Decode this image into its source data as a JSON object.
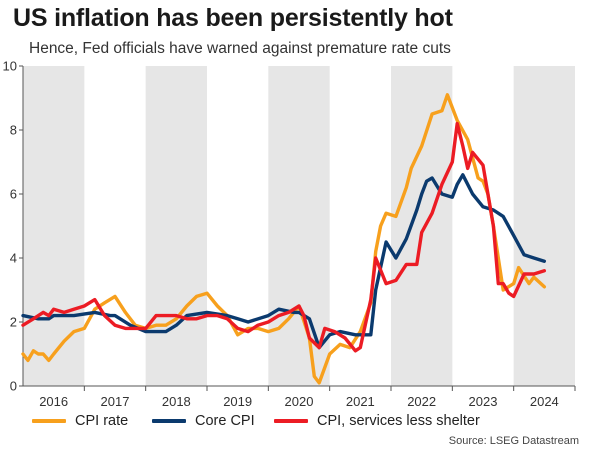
{
  "header": {
    "title": "US inflation has been persistently hot",
    "subtitle": "Hence, Fed officials have warned against premature rate cuts"
  },
  "source": "Source: LSEG Datastream",
  "colors": {
    "cpi": "#f7a01d",
    "core": "#0b3a6e",
    "services": "#ec1c24",
    "band": "#e6e6e6"
  },
  "chart_data": {
    "type": "line",
    "title": "US inflation has been persistently hot",
    "subtitle": "Hence, Fed officials have warned against premature rate cuts",
    "xlabel": "",
    "ylabel": "",
    "ylim": [
      0,
      10
    ],
    "xlim": [
      2015.5,
      2024.5
    ],
    "yticks": [
      0,
      2,
      4,
      6,
      8,
      10
    ],
    "xticks": [
      "2016",
      "2017",
      "2018",
      "2019",
      "2020",
      "2021",
      "2022",
      "2023",
      "2024"
    ],
    "shaded_years": [
      "2016",
      "2018",
      "2020",
      "2022",
      "2024"
    ],
    "grid": false,
    "legend_position": "bottom",
    "series": [
      {
        "name": "CPI rate",
        "color": "#f7a01d",
        "points": [
          [
            2015.5,
            1.0
          ],
          [
            2015.58,
            0.8
          ],
          [
            2015.67,
            1.1
          ],
          [
            2015.75,
            1.0
          ],
          [
            2015.83,
            1.0
          ],
          [
            2015.92,
            0.8
          ],
          [
            2016.0,
            1.0
          ],
          [
            2016.17,
            1.4
          ],
          [
            2016.33,
            1.7
          ],
          [
            2016.5,
            1.8
          ],
          [
            2016.67,
            2.4
          ],
          [
            2016.83,
            2.6
          ],
          [
            2017.0,
            2.8
          ],
          [
            2017.17,
            2.3
          ],
          [
            2017.33,
            1.9
          ],
          [
            2017.5,
            1.8
          ],
          [
            2017.67,
            1.9
          ],
          [
            2017.83,
            1.9
          ],
          [
            2018.0,
            2.1
          ],
          [
            2018.17,
            2.5
          ],
          [
            2018.33,
            2.8
          ],
          [
            2018.5,
            2.9
          ],
          [
            2018.67,
            2.5
          ],
          [
            2018.83,
            2.2
          ],
          [
            2019.0,
            1.6
          ],
          [
            2019.17,
            1.8
          ],
          [
            2019.33,
            1.8
          ],
          [
            2019.5,
            1.7
          ],
          [
            2019.67,
            1.8
          ],
          [
            2019.83,
            2.1
          ],
          [
            2020.0,
            2.5
          ],
          [
            2020.17,
            1.5
          ],
          [
            2020.25,
            0.3
          ],
          [
            2020.33,
            0.1
          ],
          [
            2020.5,
            1.0
          ],
          [
            2020.67,
            1.3
          ],
          [
            2020.83,
            1.2
          ],
          [
            2021.0,
            1.7
          ],
          [
            2021.17,
            2.6
          ],
          [
            2021.25,
            4.2
          ],
          [
            2021.33,
            5.0
          ],
          [
            2021.42,
            5.4
          ],
          [
            2021.58,
            5.3
          ],
          [
            2021.75,
            6.2
          ],
          [
            2021.83,
            6.8
          ],
          [
            2022.0,
            7.5
          ],
          [
            2022.17,
            8.5
          ],
          [
            2022.33,
            8.6
          ],
          [
            2022.42,
            9.1
          ],
          [
            2022.58,
            8.3
          ],
          [
            2022.75,
            7.7
          ],
          [
            2022.92,
            6.5
          ],
          [
            2023.0,
            6.4
          ],
          [
            2023.08,
            6.0
          ],
          [
            2023.17,
            5.0
          ],
          [
            2023.25,
            4.0
          ],
          [
            2023.33,
            3.0
          ],
          [
            2023.5,
            3.2
          ],
          [
            2023.58,
            3.7
          ],
          [
            2023.75,
            3.2
          ],
          [
            2023.83,
            3.4
          ],
          [
            2024.0,
            3.1
          ]
        ]
      },
      {
        "name": "Core CPI",
        "color": "#0b3a6e",
        "points": [
          [
            2015.5,
            2.2
          ],
          [
            2015.75,
            2.1
          ],
          [
            2015.92,
            2.1
          ],
          [
            2016.0,
            2.2
          ],
          [
            2016.33,
            2.2
          ],
          [
            2016.67,
            2.3
          ],
          [
            2016.92,
            2.2
          ],
          [
            2017.0,
            2.2
          ],
          [
            2017.25,
            1.9
          ],
          [
            2017.5,
            1.7
          ],
          [
            2017.83,
            1.7
          ],
          [
            2018.0,
            1.9
          ],
          [
            2018.17,
            2.2
          ],
          [
            2018.5,
            2.3
          ],
          [
            2018.83,
            2.2
          ],
          [
            2019.0,
            2.1
          ],
          [
            2019.17,
            2.0
          ],
          [
            2019.5,
            2.2
          ],
          [
            2019.67,
            2.4
          ],
          [
            2019.92,
            2.3
          ],
          [
            2020.0,
            2.3
          ],
          [
            2020.17,
            2.1
          ],
          [
            2020.33,
            1.2
          ],
          [
            2020.5,
            1.6
          ],
          [
            2020.67,
            1.7
          ],
          [
            2020.92,
            1.6
          ],
          [
            2021.0,
            1.6
          ],
          [
            2021.17,
            1.6
          ],
          [
            2021.25,
            3.0
          ],
          [
            2021.42,
            4.5
          ],
          [
            2021.58,
            4.0
          ],
          [
            2021.75,
            4.6
          ],
          [
            2021.92,
            5.5
          ],
          [
            2022.0,
            6.0
          ],
          [
            2022.08,
            6.4
          ],
          [
            2022.17,
            6.5
          ],
          [
            2022.33,
            6.0
          ],
          [
            2022.5,
            5.9
          ],
          [
            2022.58,
            6.3
          ],
          [
            2022.67,
            6.6
          ],
          [
            2022.83,
            6.0
          ],
          [
            2023.0,
            5.6
          ],
          [
            2023.17,
            5.5
          ],
          [
            2023.33,
            5.3
          ],
          [
            2023.5,
            4.7
          ],
          [
            2023.67,
            4.1
          ],
          [
            2023.83,
            4.0
          ],
          [
            2024.0,
            3.9
          ]
        ]
      },
      {
        "name": "CPI, services less shelter",
        "color": "#ec1c24",
        "points": [
          [
            2015.5,
            1.9
          ],
          [
            2015.67,
            2.1
          ],
          [
            2015.83,
            2.3
          ],
          [
            2015.92,
            2.2
          ],
          [
            2016.0,
            2.4
          ],
          [
            2016.17,
            2.3
          ],
          [
            2016.33,
            2.4
          ],
          [
            2016.5,
            2.5
          ],
          [
            2016.67,
            2.7
          ],
          [
            2016.83,
            2.2
          ],
          [
            2017.0,
            1.9
          ],
          [
            2017.17,
            1.8
          ],
          [
            2017.33,
            1.8
          ],
          [
            2017.5,
            1.8
          ],
          [
            2017.67,
            2.2
          ],
          [
            2017.83,
            2.2
          ],
          [
            2018.0,
            2.2
          ],
          [
            2018.17,
            2.1
          ],
          [
            2018.33,
            2.1
          ],
          [
            2018.5,
            2.2
          ],
          [
            2018.67,
            2.2
          ],
          [
            2018.83,
            2.1
          ],
          [
            2019.0,
            1.8
          ],
          [
            2019.17,
            1.7
          ],
          [
            2019.33,
            1.9
          ],
          [
            2019.5,
            2.0
          ],
          [
            2019.67,
            2.2
          ],
          [
            2019.83,
            2.3
          ],
          [
            2020.0,
            2.5
          ],
          [
            2020.08,
            2.2
          ],
          [
            2020.17,
            1.5
          ],
          [
            2020.33,
            1.2
          ],
          [
            2020.42,
            1.8
          ],
          [
            2020.58,
            1.7
          ],
          [
            2020.75,
            1.5
          ],
          [
            2020.92,
            1.1
          ],
          [
            2021.0,
            1.2
          ],
          [
            2021.17,
            2.7
          ],
          [
            2021.25,
            4.0
          ],
          [
            2021.42,
            3.2
          ],
          [
            2021.58,
            3.3
          ],
          [
            2021.75,
            3.8
          ],
          [
            2021.92,
            3.8
          ],
          [
            2022.0,
            4.8
          ],
          [
            2022.17,
            5.4
          ],
          [
            2022.33,
            6.3
          ],
          [
            2022.5,
            7.0
          ],
          [
            2022.58,
            8.2
          ],
          [
            2022.67,
            7.5
          ],
          [
            2022.75,
            6.8
          ],
          [
            2022.83,
            7.3
          ],
          [
            2023.0,
            6.9
          ],
          [
            2023.17,
            5.0
          ],
          [
            2023.25,
            3.2
          ],
          [
            2023.33,
            3.2
          ],
          [
            2023.42,
            2.9
          ],
          [
            2023.5,
            2.8
          ],
          [
            2023.67,
            3.5
          ],
          [
            2023.83,
            3.5
          ],
          [
            2024.0,
            3.6
          ]
        ]
      }
    ]
  }
}
